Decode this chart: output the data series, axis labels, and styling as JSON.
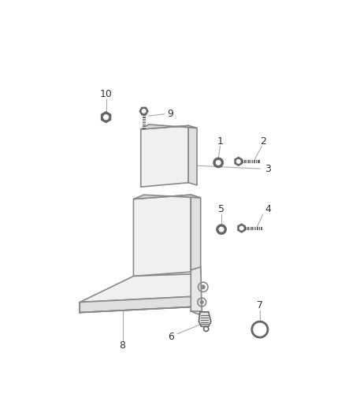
{
  "background_color": "#ffffff",
  "line_color": "#888888",
  "label_color": "#333333",
  "seat_face_color": "#f0f0f0",
  "seat_side_color": "#e0e0e0",
  "seat_top_color": "#d8d8d8",
  "hardware_color": "#666666"
}
